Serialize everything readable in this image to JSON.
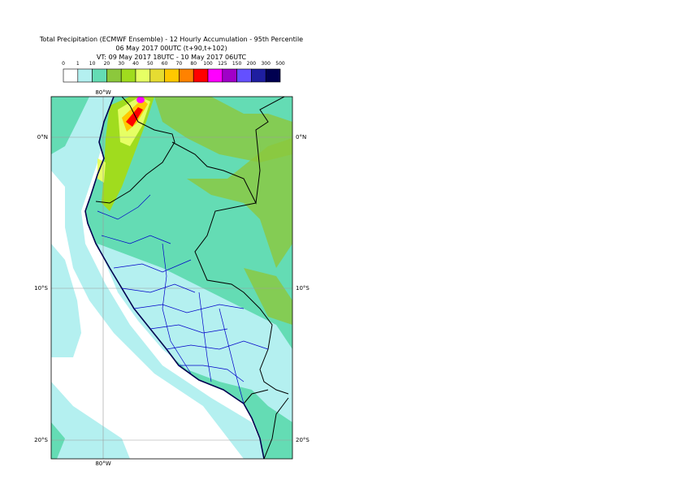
{
  "header": {
    "title": "Total Precipitation (ECMWF Ensemble) - 12 Hourly Accumulation - 95th Percentile",
    "run": "06 May 2017 00UTC (t+90,t+102)",
    "valid": "VT: 09 May 2017 18UTC - 10 May 2017 06UTC"
  },
  "legend": {
    "labels": [
      "0",
      "1",
      "10",
      "20",
      "30",
      "40",
      "50",
      "60",
      "70",
      "80",
      "100",
      "125",
      "150",
      "200",
      "300",
      "500"
    ],
    "colors": [
      "#ffffff",
      "#b4f0f0",
      "#64dcb4",
      "#8cc83c",
      "#a0dc1e",
      "#e6ff64",
      "#e6dc32",
      "#ffc800",
      "#ff8200",
      "#ff0000",
      "#ff00ff",
      "#a000c8",
      "#6450ff",
      "#1e1ea0",
      "#000050"
    ]
  },
  "map": {
    "lon_labels": [
      "80°W"
    ],
    "lat_labels": [
      "0°N",
      "10°S",
      "20°S"
    ]
  }
}
